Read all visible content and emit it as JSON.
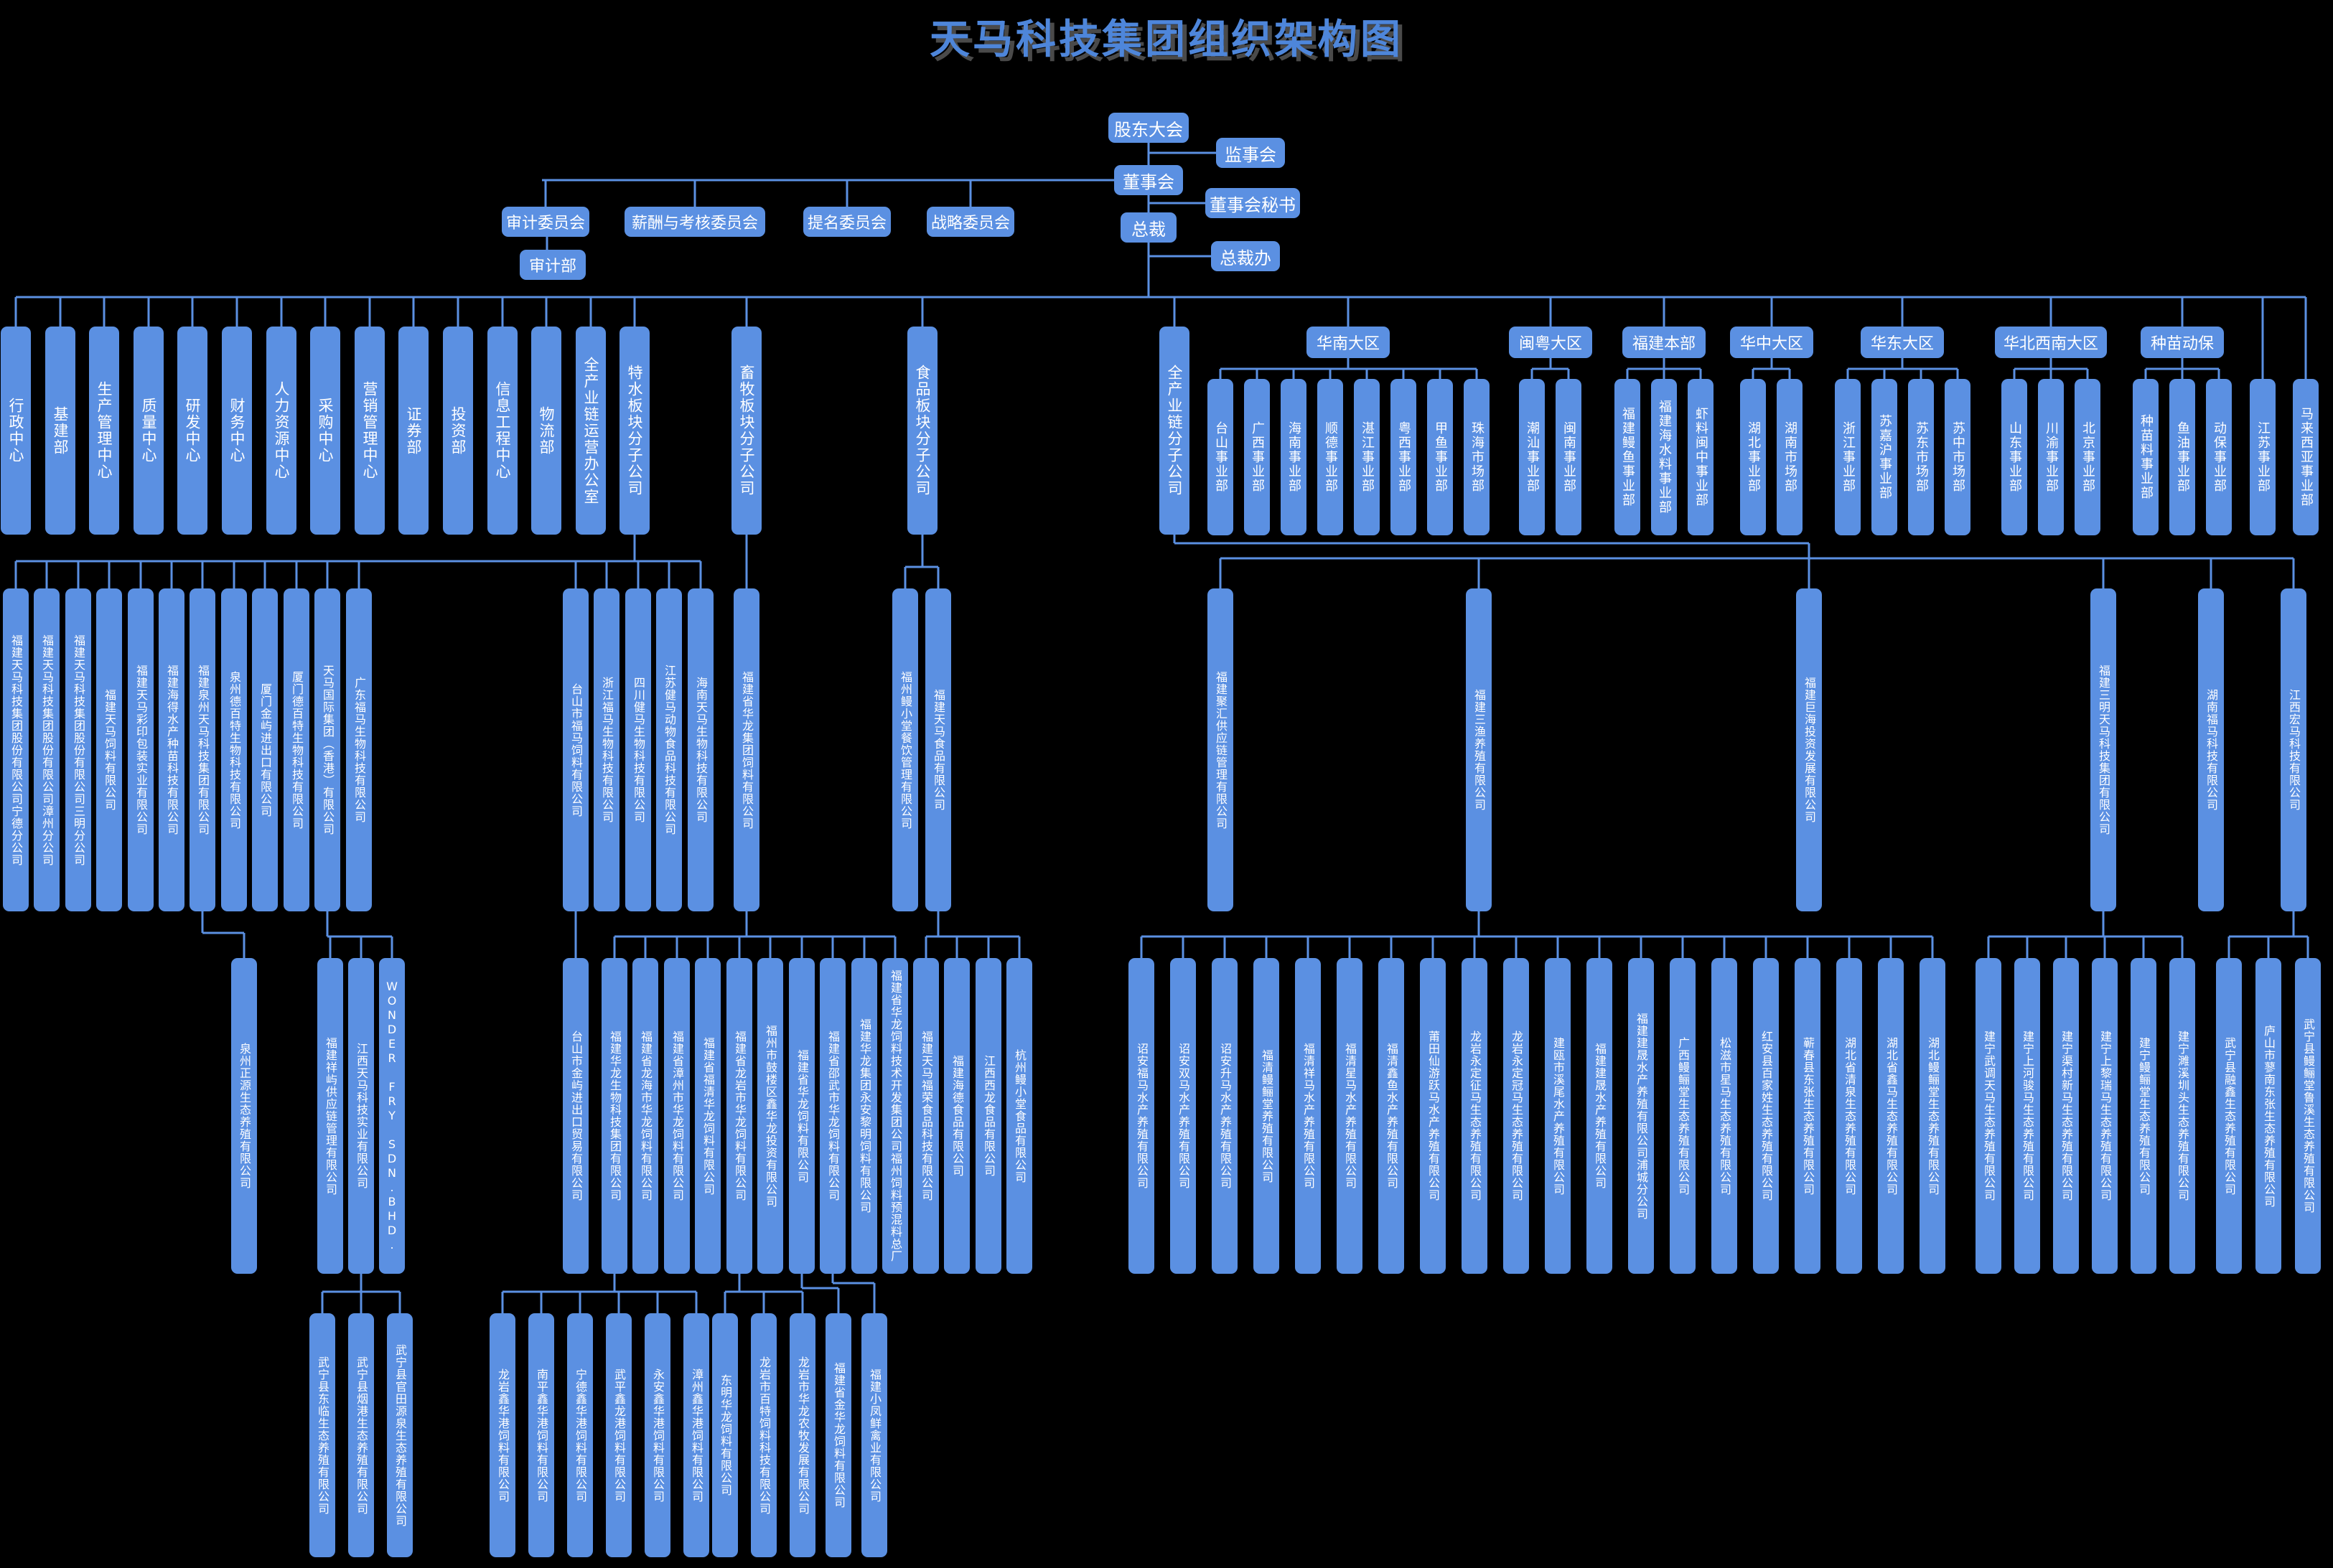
{
  "title": "天马科技集团组织架构图",
  "governance": {
    "shareholders": "股东大会",
    "supervisory": "监事会",
    "board": "董事会",
    "board_secretary": "董事会秘书",
    "president": "总裁",
    "president_office": "总裁办"
  },
  "committees": [
    "审计委员会",
    "薪酬与考核委员会",
    "提名委员会",
    "战略委员会"
  ],
  "audit_dept": "审计部",
  "departments": [
    "行政中心",
    "基建部",
    "生产管理中心",
    "质量中心",
    "研发中心",
    "财务中心",
    "人力资源中心",
    "采购中心",
    "营销管理中心",
    "证券部",
    "投资部",
    "信息工程中心",
    "物流部",
    "全产业链运营办公室",
    "特水板块分子公司"
  ],
  "livestock_block": "畜牧板块分子公司",
  "food_block": "食品板块分子公司",
  "chain_block": "全产业链分子公司",
  "regions": [
    {
      "name": "华南大区",
      "units": [
        "台山事业部",
        "广西事业部",
        "海南事业部",
        "顺德事业部",
        "湛江事业部",
        "粤西事业部",
        "甲鱼事业部",
        "珠海市场部"
      ]
    },
    {
      "name": "闽粤大区",
      "units": [
        "潮汕事业部",
        "闽南事业部"
      ]
    },
    {
      "name": "福建本部",
      "units": [
        "福建鳗鱼事业部",
        "福建海水料事业部",
        "虾料闽中事业部"
      ]
    },
    {
      "name": "华中大区",
      "units": [
        "湖北事业部",
        "湖南市场部"
      ]
    },
    {
      "name": "华东大区",
      "units": [
        "浙江事业部",
        "苏嘉沪事业部",
        "苏东市场部",
        "苏中市场部"
      ]
    },
    {
      "name": "华北西南大区",
      "units": [
        "山东事业部",
        "川渝事业部",
        "北京事业部"
      ]
    },
    {
      "name": "种苗动保",
      "units": [
        "种苗料事业部",
        "鱼油事业部",
        "动保事业部"
      ]
    }
  ],
  "direct_units": [
    "江苏事业部",
    "马来西亚事业部"
  ],
  "special_water_subs": [
    "福建天马科技集团股份有限公司宁德分公司",
    "福建天马科技集团股份有限公司漳州分公司",
    "福建天马科技集团股份有限公司三明分公司",
    "福建天马饲料有限公司",
    "福建天马彩印包装实业有限公司",
    "福建海得水产种苗科技有限公司",
    "福建泉州天马科技集团有限公司",
    "泉州德百特生物科技有限公司",
    "厦门金屿进出口有限公司",
    "厦门德百特生物科技有限公司",
    "天马国际集团（香港）有限公司",
    "广东福马生物科技有限公司",
    "台山市福马饲料有限公司",
    "浙江福马生物科技有限公司",
    "四川健马生物科技有限公司",
    "江苏健马动物食品科技有限公司",
    "海南天马生物科技有限公司"
  ],
  "livestock_sub": "福建省华龙集团饲料有限公司",
  "food_subs": [
    "福州鳗小堂餐饮管理有限公司",
    "福建天马食品有限公司"
  ],
  "chain_subs": [
    "福建聚汇供应链管理有限公司",
    "福建三渔养殖有限公司",
    "福建巨海投资发展有限公司",
    "福建三明天马科技集团有限公司",
    "湖南福马科技有限公司",
    "江西宏马科技有限公司"
  ],
  "quanzhou_sub": "泉州正源生态养殖有限公司",
  "hk_subs": [
    "福建祥屿供应链管理有限公司",
    "江西天马科技实业有限公司",
    "WONDER FRY SDN.BHD."
  ],
  "taishan_sub": "台山市金屿进出口贸易有限公司",
  "hualong_subs": [
    "福建华龙生物科技集团有限公司",
    "福建省龙海市华龙饲料有限公司",
    "福建省漳州市华龙饲料有限公司",
    "福建省福清华龙饲料有限公司",
    "福建省龙岩市华龙饲料有限公司",
    "福州市鼓楼区鑫华龙投资有限公司",
    "福建省华龙饲料有限公司",
    "福建省邵武市华龙饲料有限公司",
    "福建华龙集团永安黎明饲料有限公司",
    "福建省华龙饲料技术开发集团公司福州饲料预混料总厂"
  ],
  "food_companies": [
    "福建天马福荣食品科技有限公司",
    "福建海德食品有限公司",
    "江西西龙食品有限公司",
    "杭州鳗小堂食品有限公司"
  ],
  "sanyu_subs": [
    "诏安福马水产养殖有限公司",
    "诏安双马水产养殖有限公司",
    "诏安升马水产养殖有限公司",
    "福清鳗鲡堂养殖有限公司",
    "福清祥马水产养殖有限公司",
    "福清星马水产养殖有限公司",
    "福清鑫鱼水产养殖有限公司",
    "莆田仙游跃马水产养殖有限公司",
    "龙岩永定征马生态养殖有限公司",
    "龙岩永定冠马生态养殖有限公司",
    "建瓯市溪尾水产养殖有限公司",
    "福建建晟水产养殖有限公司",
    "福建建晟水产养殖有限公司浦城分公司",
    "广西鳗鲡堂生态养殖有限公司",
    "松滋市星马生态养殖有限公司",
    "红安县百家姓生态养殖有限公司",
    "蕲春县东张生态养殖有限公司",
    "湖北省清泉生态养殖有限公司",
    "湖北省鑫马生态养殖有限公司",
    "湖北鳗鲡堂生态养殖有限公司"
  ],
  "sanming_subs": [
    "建宁武调天马生态养殖有限公司",
    "建宁上河骏马生态养殖有限公司",
    "建宁渠村新马生态养殖有限公司",
    "建宁上黎瑞马生态养殖有限公司",
    "建宁鳗鲡堂生态养殖有限公司",
    "建宁濉溪圳头生态养殖有限公司"
  ],
  "hongma_subs": [
    "武宁县融鑫生态养殖有限公司",
    "庐山市蓼南东张生态养殖有限公司",
    "武宁县鳗鲡堂鲁溪生态养殖有限公司"
  ],
  "jiangxi_tianma_subs": [
    "武宁县东临生态养殖有限公司",
    "武宁县烟港生态养殖有限公司",
    "武宁县官田源泉生态养殖有限公司"
  ],
  "hualong_bio_subs": [
    "龙岩鑫华港饲料有限公司",
    "南平鑫华港饲料有限公司",
    "宁德鑫华港饲料有限公司",
    "武平鑫龙港饲料有限公司",
    "永安鑫华港饲料有限公司",
    "漳州鑫华港饲料有限公司"
  ],
  "longyan_hualong_subs": [
    "东明华龙饲料有限公司",
    "龙岩市百特饲料科技有限公司",
    "龙岩市华龙农牧发展有限公司"
  ],
  "jinhualong": "福建省金华龙饲料有限公司",
  "xiaofeng": "福建小凤鲜禽业有限公司",
  "colors": {
    "box": "#5b90e2",
    "line": "#5b90e2",
    "text": "#ffffff",
    "title": "#4e86da",
    "background": "#000000"
  }
}
